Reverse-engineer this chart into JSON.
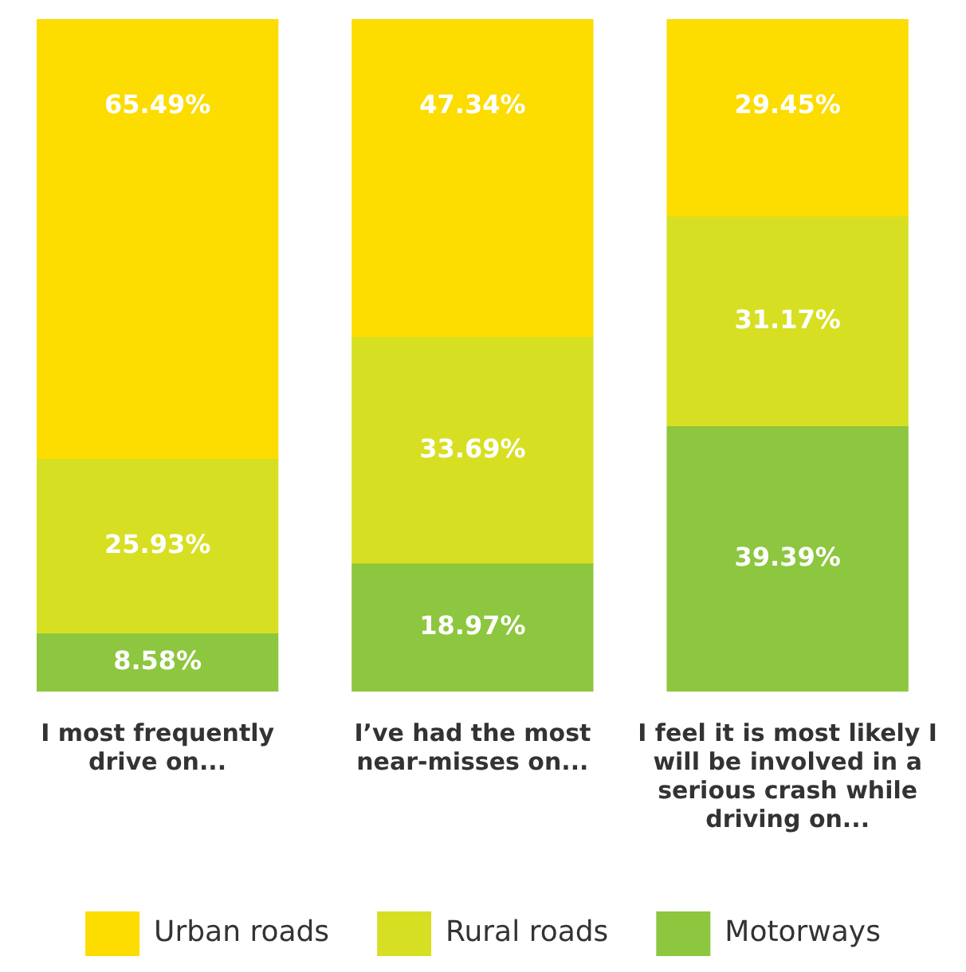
{
  "chart_data": {
    "type": "bar",
    "stacked": true,
    "categories": [
      "I most frequently drive on...",
      "I’ve had the most near-misses on...",
      "I feel it is most likely I will be involved in a serious crash while driving on..."
    ],
    "series": [
      {
        "name": "Motorways",
        "color": "#8dc63f",
        "values": [
          8.58,
          18.97,
          39.39
        ],
        "value_labels": [
          "8.58%",
          "18.97%",
          "39.39%"
        ]
      },
      {
        "name": "Rural roads",
        "color": "#d7df23",
        "values": [
          25.93,
          33.69,
          31.17
        ],
        "value_labels": [
          "25.93%",
          "33.69%",
          "31.17%"
        ]
      },
      {
        "name": "Urban roads",
        "color": "#fddc00",
        "values": [
          65.49,
          47.34,
          29.45
        ],
        "value_labels": [
          "65.49%",
          "47.34%",
          "29.45%"
        ]
      }
    ],
    "ylim": [
      0,
      100
    ],
    "tick_labels": "x",
    "grid": false,
    "legend": "bottom"
  }
}
